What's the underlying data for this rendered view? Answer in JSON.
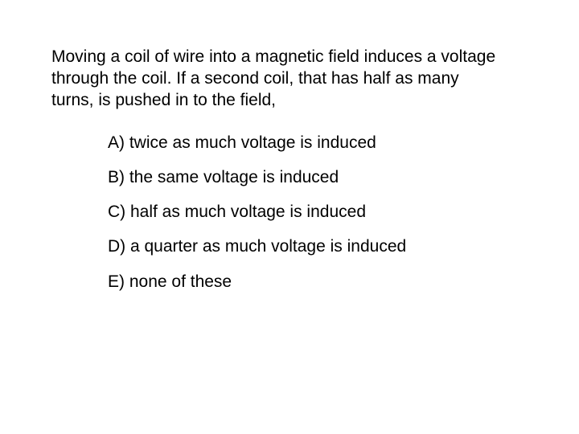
{
  "question": {
    "stem": "Moving a coil of wire into a magnetic field induces a voltage through the coil. If  a second coil, that has half as many turns, is pushed in to the field,",
    "options": [
      {
        "label": "A) twice as much voltage  is induced"
      },
      {
        "label": "B) the same voltage is induced"
      },
      {
        "label": "C) half as much voltage is induced"
      },
      {
        "label": "D) a quarter as much voltage is induced"
      },
      {
        "label": "E) none of these"
      }
    ],
    "text_color": "#000000",
    "background_color": "#ffffff",
    "stem_fontsize": 21,
    "option_fontsize": 21
  }
}
